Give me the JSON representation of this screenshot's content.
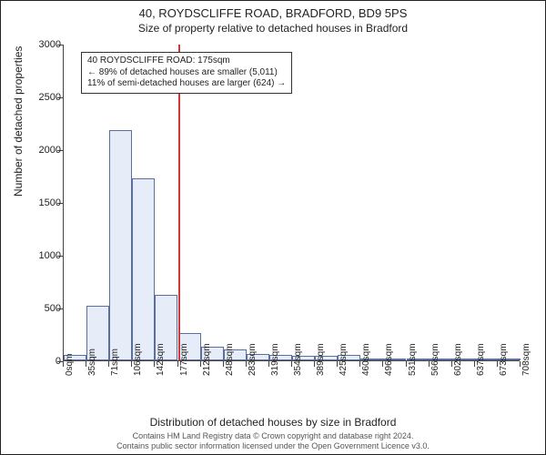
{
  "title_main": "40, ROYDSCLIFFE ROAD, BRADFORD, BD9 5PS",
  "title_sub": "Size of property relative to detached houses in Bradford",
  "yaxis_label": "Number of detached properties",
  "xaxis_label": "Distribution of detached houses by size in Bradford",
  "footer_line1": "Contains HM Land Registry data © Crown copyright and database right 2024.",
  "footer_line2": "Contains public sector information licensed under the Open Government Licence v3.0.",
  "annotation": {
    "line1": "40 ROYDSCLIFFE ROAD: 175sqm",
    "line2": "← 89% of detached houses are smaller (5,011)",
    "line3": "11% of semi-detached houses are larger (624) →"
  },
  "chart": {
    "type": "histogram",
    "categories": [
      "0sqm",
      "35sqm",
      "71sqm",
      "106sqm",
      "142sqm",
      "177sqm",
      "212sqm",
      "248sqm",
      "283sqm",
      "319sqm",
      "354sqm",
      "389sqm",
      "425sqm",
      "460sqm",
      "496sqm",
      "531sqm",
      "566sqm",
      "602sqm",
      "637sqm",
      "673sqm",
      "708sqm"
    ],
    "values": [
      50,
      520,
      2180,
      1720,
      620,
      260,
      130,
      100,
      60,
      50,
      40,
      40,
      50,
      20,
      10,
      5,
      5,
      5,
      5,
      5
    ],
    "ylim": [
      0,
      3000
    ],
    "ytick_step": 500,
    "bar_fill": "#e6ecf8",
    "bar_border": "#5b6e9c",
    "bar_border_width": 0.6,
    "background_color": "#ffffff",
    "axis_color": "#444444",
    "text_color": "#222222",
    "marker_x_category_index": 5,
    "marker_color": "#cc3b3b",
    "title_fontsize": 13,
    "subtitle_fontsize": 12,
    "axis_label_fontsize": 12,
    "tick_fontsize": 11,
    "xtick_fontsize": 10,
    "annotation_fontsize": 10
  }
}
